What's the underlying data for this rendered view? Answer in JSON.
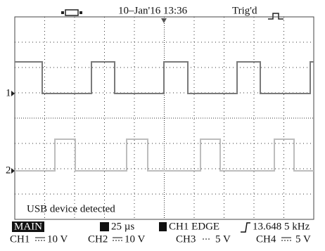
{
  "header": {
    "date_time": "10–Jan'16 13:36",
    "trigger_status": "Trig'd"
  },
  "screen": {
    "channel_markers": [
      "1",
      "2"
    ],
    "message": "USB device detected"
  },
  "footer": {
    "mode": "MAIN",
    "timebase": "25 µs",
    "trigger": "CH1 EDGE",
    "frequency": "13.648 5 kHz",
    "channels": [
      {
        "name": "CH1",
        "scale": "10 V"
      },
      {
        "name": "CH2",
        "scale": "10 V"
      },
      {
        "name": "CH3",
        "scale": "5 V"
      },
      {
        "name": "CH4",
        "scale": "5 V"
      }
    ]
  }
}
